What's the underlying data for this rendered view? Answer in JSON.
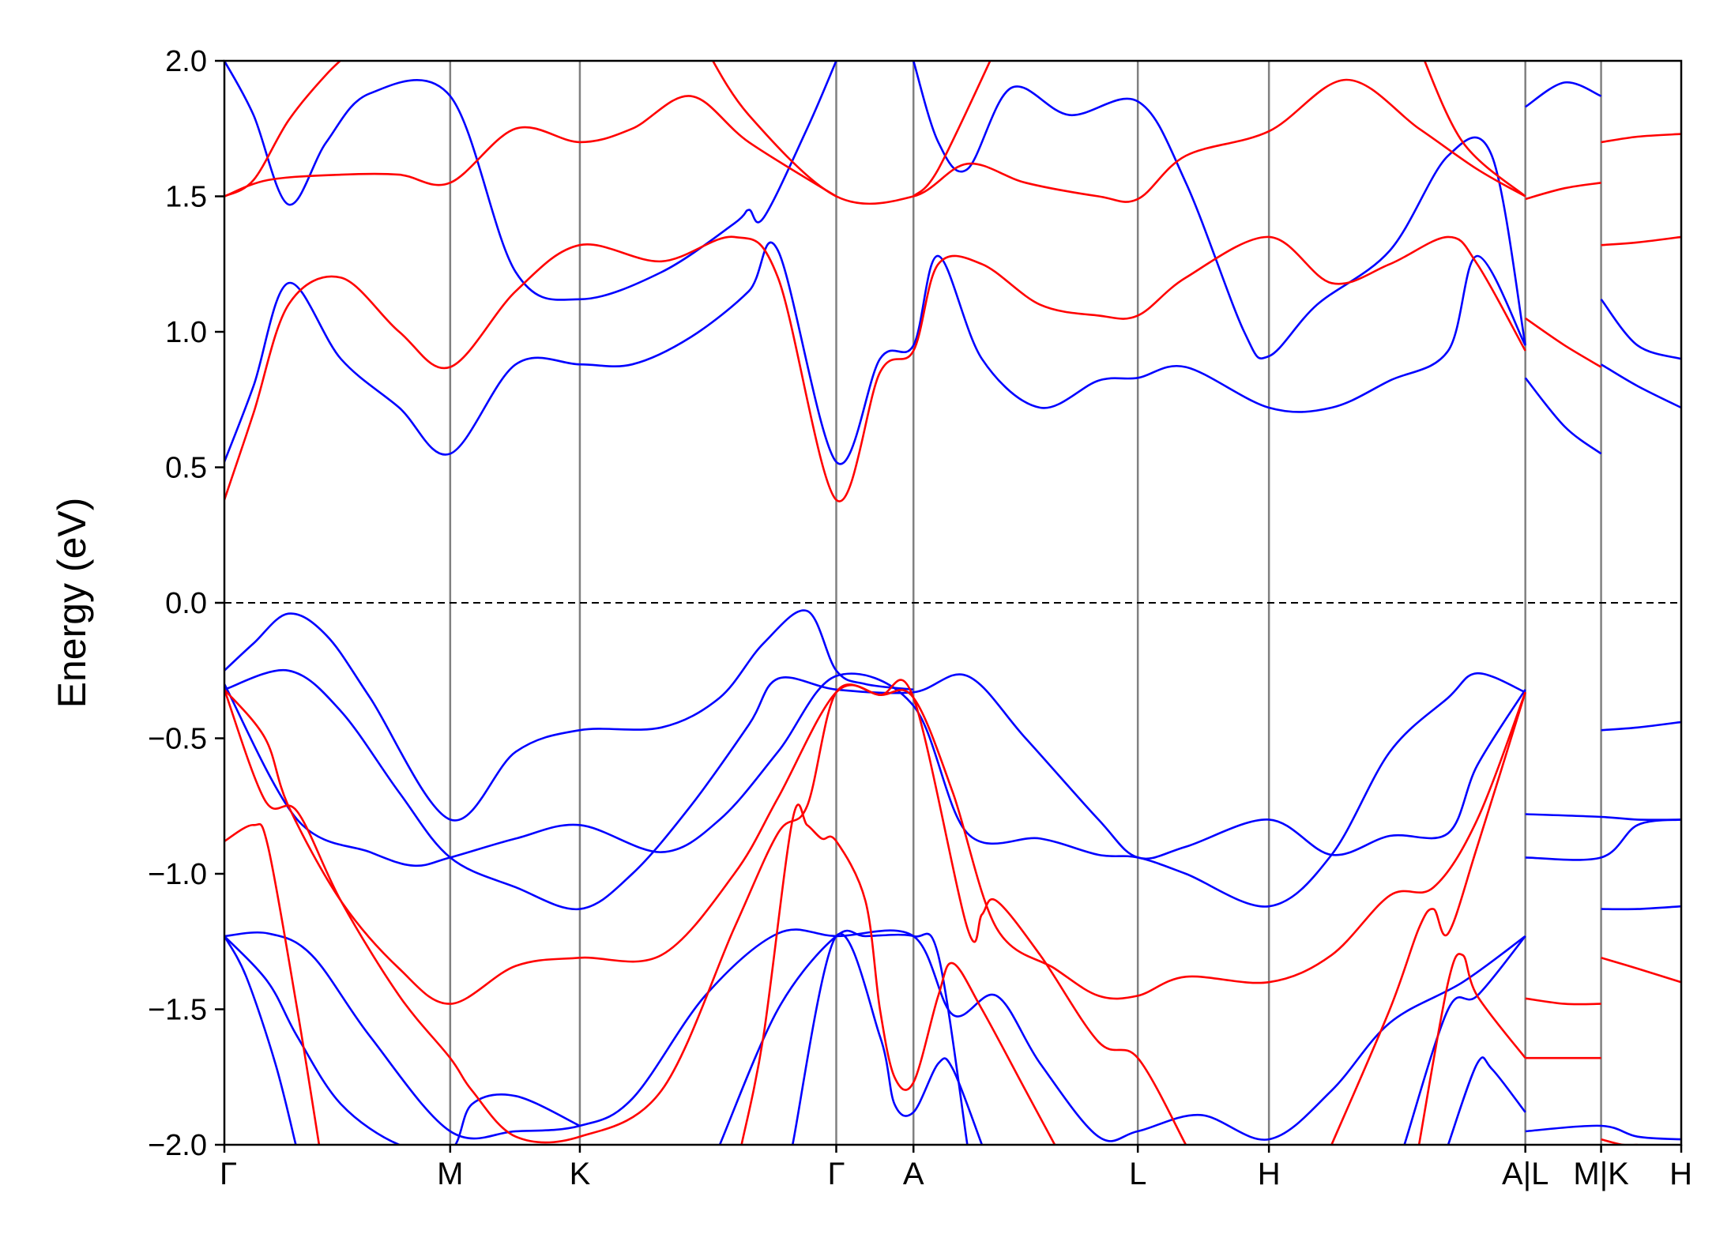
{
  "chart_data": {
    "type": "line",
    "title": "",
    "xlabel": "",
    "ylabel": "Energy (eV)",
    "ylim": [
      -2.0,
      2.0
    ],
    "yticks": [
      2.0,
      1.5,
      1.0,
      0.5,
      0.0,
      -0.5,
      -1.0,
      -1.5,
      -2.0
    ],
    "ytick_labels": [
      "2.0",
      "1.5",
      "1.0",
      "0.5",
      "0.0",
      "−0.5",
      "−1.0",
      "−1.5",
      "−2.0"
    ],
    "xlim": [
      0,
      1
    ],
    "grid": false,
    "legend": "none",
    "fermi_level": 0.0,
    "kpath": [
      {
        "label": "Γ",
        "x": 0.0
      },
      {
        "label": "M",
        "x": 0.155
      },
      {
        "label": "K",
        "x": 0.244
      },
      {
        "label": "Γ",
        "x": 0.42
      },
      {
        "label": "A",
        "x": 0.473
      },
      {
        "label": "L",
        "x": 0.627
      },
      {
        "label": "H",
        "x": 0.717
      },
      {
        "label": "A|L",
        "x": 0.893
      },
      {
        "label": "M|K",
        "x": 0.945
      },
      {
        "label": "H",
        "x": 1.0
      }
    ],
    "colors": {
      "series_blue": "#0000ff",
      "series_red": "#ff0000",
      "vline": "#808080",
      "fermi": "#000000"
    },
    "series": [
      {
        "color": "blue",
        "x": [
          0,
          0.02,
          0.044,
          0.07,
          0.1,
          0.155,
          0.2,
          0.244,
          0.3,
          0.34,
          0.37,
          0.4,
          0.42,
          0.44,
          0.473
        ],
        "y": [
          -0.25,
          -0.15,
          -0.04,
          -0.12,
          -0.35,
          -0.8,
          -0.55,
          -0.47,
          -0.46,
          -0.35,
          -0.15,
          -0.03,
          -0.25,
          -0.3,
          -0.32
        ]
      },
      {
        "color": "blue",
        "x": [
          0,
          0.044,
          0.08,
          0.12,
          0.155,
          0.2,
          0.244,
          0.28,
          0.32,
          0.36,
          0.38,
          0.42,
          0.473,
          0.51,
          0.55,
          0.6,
          0.627,
          0.66,
          0.717,
          0.76,
          0.8,
          0.84,
          0.86,
          0.893
        ],
        "y": [
          -0.32,
          -0.25,
          -0.4,
          -0.7,
          -0.94,
          -1.05,
          -1.13,
          -1.0,
          -0.75,
          -0.45,
          -0.28,
          -0.32,
          -0.33,
          -0.27,
          -0.5,
          -0.8,
          -0.94,
          -0.9,
          -0.8,
          -0.93,
          -0.86,
          -0.85,
          -0.6,
          -0.32
        ]
      },
      {
        "color": "blue",
        "x": [
          0,
          0.05,
          0.1,
          0.13,
          0.155,
          0.2,
          0.244,
          0.3,
          0.34,
          0.38,
          0.42,
          0.473,
          0.51,
          0.56,
          0.6,
          0.627,
          0.66,
          0.717,
          0.76,
          0.8,
          0.84,
          0.86,
          0.893
        ],
        "y": [
          -0.3,
          -0.8,
          -0.92,
          -0.97,
          -0.94,
          -0.87,
          -0.82,
          -0.92,
          -0.8,
          -0.55,
          -0.27,
          -0.38,
          -0.85,
          -0.87,
          -0.93,
          -0.94,
          -1.0,
          -1.12,
          -0.93,
          -0.55,
          -0.35,
          -0.26,
          -0.33
        ]
      },
      {
        "color": "blue",
        "x": [
          0,
          0.03,
          0.06,
          0.1,
          0.155,
          0.2,
          0.244,
          0.28,
          0.33,
          0.38,
          0.42,
          0.473,
          0.5,
          0.53,
          0.56,
          0.6,
          0.627,
          0.67,
          0.717,
          0.76,
          0.8,
          0.85,
          0.893
        ],
        "y": [
          -1.23,
          -1.22,
          -1.3,
          -1.6,
          -1.95,
          -1.95,
          -1.93,
          -1.83,
          -1.45,
          -1.22,
          -1.23,
          -1.23,
          -1.52,
          -1.45,
          -1.7,
          -1.97,
          -1.95,
          -1.89,
          -1.98,
          -1.8,
          -1.55,
          -1.4,
          -1.23
        ]
      },
      {
        "color": "blue",
        "x": [
          0,
          0.03,
          0.05,
          0.08,
          0.12,
          0.155,
          0.17,
          0.2,
          0.244
        ],
        "y": [
          -1.23,
          -1.4,
          -1.6,
          -1.85,
          -2.0,
          -2.02,
          -1.85,
          -1.82,
          -1.93
        ]
      },
      {
        "color": "blue",
        "x": [
          0,
          0.015,
          0.035,
          0.049
        ],
        "y": [
          -1.23,
          -1.38,
          -1.7,
          -2.0
        ]
      },
      {
        "color": "blue",
        "x": [
          0.34,
          0.38,
          0.42,
          0.44,
          0.473,
          0.49,
          0.51
        ],
        "y": [
          -2.0,
          -1.5,
          -1.23,
          -1.23,
          -1.23,
          -1.3,
          -2.0
        ]
      },
      {
        "color": "blue",
        "x": [
          0.39,
          0.42,
          0.45,
          0.46,
          0.473,
          0.49,
          0.5,
          0.52
        ],
        "y": [
          -2.0,
          -1.23,
          -1.6,
          -1.85,
          -1.88,
          -1.7,
          -1.72,
          -2.0
        ]
      },
      {
        "color": "blue",
        "x": [
          0.84,
          0.86,
          0.87,
          0.893
        ],
        "y": [
          -2.0,
          -1.7,
          -1.72,
          -1.88
        ]
      },
      {
        "color": "blue",
        "x": [
          0.81,
          0.84,
          0.86,
          0.893
        ],
        "y": [
          -2.0,
          -1.5,
          -1.45,
          -1.23
        ]
      },
      {
        "color": "blue",
        "x": [
          0,
          0.02,
          0.044,
          0.08,
          0.12,
          0.155,
          0.2,
          0.244,
          0.28,
          0.32,
          0.36,
          0.38,
          0.42,
          0.45,
          0.473,
          0.49,
          0.52,
          0.56,
          0.6,
          0.627,
          0.66,
          0.717,
          0.76,
          0.8,
          0.84,
          0.86,
          0.893
        ],
        "y": [
          0.52,
          0.8,
          1.18,
          0.9,
          0.72,
          0.55,
          0.88,
          0.88,
          0.88,
          0.98,
          1.15,
          1.3,
          0.52,
          0.9,
          0.95,
          1.28,
          0.9,
          0.72,
          0.82,
          0.83,
          0.87,
          0.72,
          0.72,
          0.82,
          0.93,
          1.28,
          0.95
        ]
      },
      {
        "color": "blue",
        "x": [
          0,
          0.02,
          0.044,
          0.07,
          0.1,
          0.155,
          0.2,
          0.244,
          0.3,
          0.35,
          0.36,
          0.37,
          0.4,
          0.42
        ],
        "y": [
          2.0,
          1.8,
          1.47,
          1.7,
          1.88,
          1.87,
          1.22,
          1.12,
          1.22,
          1.4,
          1.45,
          1.42,
          1.75,
          2.0
        ]
      },
      {
        "color": "blue",
        "x": [
          0.473,
          0.49,
          0.51,
          0.54,
          0.58,
          0.627,
          0.66,
          0.7,
          0.717,
          0.75,
          0.8,
          0.84,
          0.87,
          0.893
        ],
        "y": [
          2.0,
          1.7,
          1.6,
          1.9,
          1.8,
          1.85,
          1.55,
          1.0,
          0.91,
          1.1,
          1.3,
          1.65,
          1.65,
          0.95
        ]
      },
      {
        "color": "blue",
        "x": [
          0.893,
          0.92,
          0.945
        ],
        "y": [
          0.83,
          0.65,
          0.55
        ]
      },
      {
        "color": "blue",
        "x": [
          0.893,
          0.92,
          0.945
        ],
        "y": [
          1.83,
          1.92,
          1.87
        ]
      },
      {
        "color": "blue",
        "x": [
          0.945,
          0.97,
          1.0
        ],
        "y": [
          1.12,
          0.95,
          0.9
        ]
      },
      {
        "color": "blue",
        "x": [
          0.945,
          0.97,
          1.0
        ],
        "y": [
          0.88,
          0.8,
          0.72
        ]
      },
      {
        "color": "blue",
        "x": [
          0.893,
          0.945,
          0.97,
          1.0
        ],
        "y": [
          -0.78,
          -0.79,
          -0.8,
          -0.8
        ]
      },
      {
        "color": "blue",
        "x": [
          0.893,
          0.945,
          0.97,
          1.0
        ],
        "y": [
          -0.94,
          -0.94,
          -0.82,
          -0.8
        ]
      },
      {
        "color": "blue",
        "x": [
          0.945,
          0.97,
          1.0
        ],
        "y": [
          -0.47,
          -0.46,
          -0.44
        ]
      },
      {
        "color": "blue",
        "x": [
          0.945,
          0.97,
          1.0
        ],
        "y": [
          -1.13,
          -1.13,
          -1.12
        ]
      },
      {
        "color": "blue",
        "x": [
          0.893,
          0.945,
          0.97,
          1.0
        ],
        "y": [
          -1.95,
          -1.93,
          -1.97,
          -1.98
        ]
      },
      {
        "color": "red",
        "x": [
          0,
          0.02,
          0.044,
          0.08,
          0.12,
          0.155,
          0.2,
          0.244,
          0.3,
          0.35,
          0.38,
          0.42,
          0.45,
          0.473,
          0.49,
          0.52,
          0.56,
          0.6,
          0.627,
          0.66,
          0.717,
          0.76,
          0.8,
          0.84,
          0.86,
          0.893
        ],
        "y": [
          0.38,
          0.7,
          1.1,
          1.2,
          1.0,
          0.87,
          1.15,
          1.32,
          1.26,
          1.35,
          1.2,
          0.38,
          0.85,
          0.93,
          1.25,
          1.25,
          1.1,
          1.06,
          1.06,
          1.2,
          1.35,
          1.18,
          1.25,
          1.35,
          1.25,
          0.93
        ]
      },
      {
        "color": "red",
        "x": [
          0,
          0.03,
          0.08,
          0.12,
          0.155,
          0.2,
          0.244,
          0.28,
          0.32,
          0.36,
          0.42
        ],
        "y": [
          1.5,
          1.56,
          1.58,
          1.58,
          1.55,
          1.75,
          1.7,
          1.75,
          1.87,
          1.7,
          1.5
        ]
      },
      {
        "color": "red",
        "x": [
          0,
          0.02,
          0.044,
          0.07,
          0.09
        ],
        "y": [
          1.5,
          1.56,
          1.78,
          1.95,
          2.05
        ]
      },
      {
        "color": "red",
        "x": [
          0.33,
          0.36,
          0.42,
          0.473,
          0.51,
          0.55,
          0.6,
          0.627,
          0.66,
          0.717,
          0.77,
          0.82,
          0.86,
          0.893
        ],
        "y": [
          2.05,
          1.8,
          1.5,
          1.5,
          1.62,
          1.55,
          1.5,
          1.49,
          1.65,
          1.74,
          1.93,
          1.75,
          1.6,
          1.5
        ]
      },
      {
        "color": "red",
        "x": [
          0.473,
          0.49,
          0.53
        ],
        "y": [
          1.5,
          1.6,
          2.05
        ]
      },
      {
        "color": "red",
        "x": [
          0.82,
          0.85,
          0.893
        ],
        "y": [
          2.05,
          1.7,
          1.5
        ]
      },
      {
        "color": "red",
        "x": [
          0.893,
          0.92,
          0.945
        ],
        "y": [
          1.05,
          0.95,
          0.87
        ]
      },
      {
        "color": "red",
        "x": [
          0.893,
          0.92,
          0.945
        ],
        "y": [
          1.49,
          1.53,
          1.55
        ]
      },
      {
        "color": "red",
        "x": [
          0.945,
          0.97,
          1.0
        ],
        "y": [
          1.7,
          1.72,
          1.73
        ]
      },
      {
        "color": "red",
        "x": [
          0.945,
          0.97,
          1.0
        ],
        "y": [
          1.32,
          1.33,
          1.35
        ]
      },
      {
        "color": "red",
        "x": [
          0,
          0.028,
          0.044,
          0.08,
          0.12,
          0.155,
          0.2,
          0.244,
          0.3,
          0.35,
          0.38,
          0.42,
          0.45,
          0.473,
          0.5,
          0.53,
          0.57,
          0.6,
          0.627,
          0.66,
          0.717,
          0.76,
          0.8,
          0.83,
          0.86,
          0.893
        ],
        "y": [
          -0.32,
          -0.5,
          -0.75,
          -1.1,
          -1.35,
          -1.48,
          -1.34,
          -1.31,
          -1.3,
          -1.0,
          -0.72,
          -0.33,
          -0.34,
          -0.35,
          -0.7,
          -1.2,
          -1.35,
          -1.45,
          -1.45,
          -1.38,
          -1.4,
          -1.3,
          -1.08,
          -1.05,
          -0.8,
          -0.33
        ]
      },
      {
        "color": "red",
        "x": [
          0,
          0.028,
          0.05,
          0.08,
          0.12,
          0.155,
          0.17,
          0.2,
          0.244,
          0.3,
          0.35,
          0.38,
          0.4,
          0.42,
          0.45,
          0.473,
          0.51,
          0.52,
          0.53,
          0.56,
          0.6,
          0.627,
          0.66
        ],
        "y": [
          -0.32,
          -0.73,
          -0.77,
          -1.1,
          -1.45,
          -1.68,
          -1.8,
          -1.97,
          -1.97,
          -1.8,
          -1.2,
          -0.85,
          -0.75,
          -0.33,
          -0.34,
          -0.35,
          -1.2,
          -1.15,
          -1.1,
          -1.3,
          -1.62,
          -1.68,
          -2.0
        ]
      },
      {
        "color": "red",
        "x": [
          0,
          0.02,
          0.03,
          0.05,
          0.065
        ],
        "y": [
          -0.88,
          -0.82,
          -0.9,
          -1.5,
          -2.0
        ]
      },
      {
        "color": "red",
        "x": [
          0.355,
          0.37,
          0.39,
          0.4,
          0.41,
          0.42,
          0.44,
          0.45,
          0.46,
          0.473,
          0.49,
          0.5,
          0.52,
          0.55,
          0.57
        ],
        "y": [
          -2.0,
          -1.6,
          -0.8,
          -0.82,
          -0.87,
          -0.88,
          -1.1,
          -1.5,
          -1.75,
          -1.77,
          -1.45,
          -1.33,
          -1.5,
          -1.8,
          -2.0
        ]
      },
      {
        "color": "red",
        "x": [
          0.76,
          0.8,
          0.82,
          0.83,
          0.84,
          0.86,
          0.893
        ],
        "y": [
          -2.0,
          -1.5,
          -1.2,
          -1.13,
          -1.22,
          -0.9,
          -0.33
        ]
      },
      {
        "color": "red",
        "x": [
          0.82,
          0.84,
          0.85,
          0.86,
          0.893
        ],
        "y": [
          -2.0,
          -1.4,
          -1.3,
          -1.45,
          -1.68
        ]
      },
      {
        "color": "red",
        "x": [
          0.893,
          0.92,
          0.945
        ],
        "y": [
          -1.46,
          -1.48,
          -1.48
        ]
      },
      {
        "color": "red",
        "x": [
          0.893,
          0.945
        ],
        "y": [
          -1.68,
          -1.68
        ]
      },
      {
        "color": "red",
        "x": [
          0.945,
          0.97,
          1.0
        ],
        "y": [
          -1.31,
          -1.35,
          -1.4
        ]
      },
      {
        "color": "red",
        "x": [
          0.945,
          0.96,
          0.97
        ],
        "y": [
          -1.98,
          -2.0,
          -2.0
        ]
      }
    ]
  }
}
